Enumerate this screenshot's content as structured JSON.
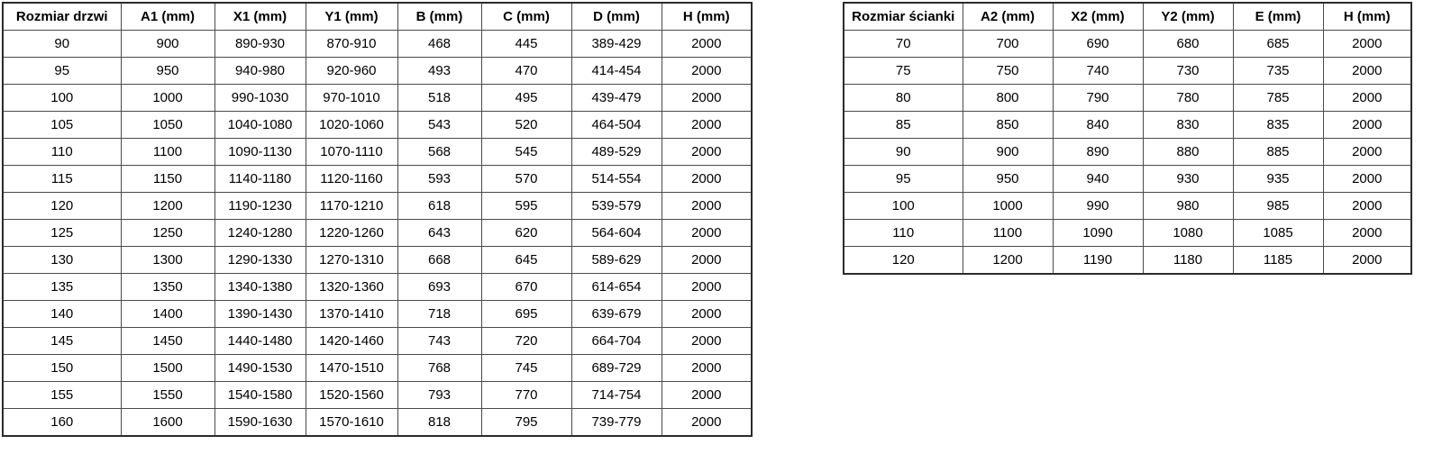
{
  "colors": {
    "background": "#ffffff",
    "text": "#000000",
    "outer_border": "#2b2b2b",
    "inner_border": "#4a4a4a"
  },
  "door_table": {
    "name": "door-dimensions-table",
    "headers": [
      "Rozmiar drzwi",
      "A1 (mm)",
      "X1 (mm)",
      "Y1 (mm)",
      "B (mm)",
      "C (mm)",
      "D (mm)",
      "H (mm)"
    ],
    "rows": [
      [
        "90",
        "900",
        "890-930",
        "870-910",
        "468",
        "445",
        "389-429",
        "2000"
      ],
      [
        "95",
        "950",
        "940-980",
        "920-960",
        "493",
        "470",
        "414-454",
        "2000"
      ],
      [
        "100",
        "1000",
        "990-1030",
        "970-1010",
        "518",
        "495",
        "439-479",
        "2000"
      ],
      [
        "105",
        "1050",
        "1040-1080",
        "1020-1060",
        "543",
        "520",
        "464-504",
        "2000"
      ],
      [
        "110",
        "1100",
        "1090-1130",
        "1070-1110",
        "568",
        "545",
        "489-529",
        "2000"
      ],
      [
        "115",
        "1150",
        "1140-1180",
        "1120-1160",
        "593",
        "570",
        "514-554",
        "2000"
      ],
      [
        "120",
        "1200",
        "1190-1230",
        "1170-1210",
        "618",
        "595",
        "539-579",
        "2000"
      ],
      [
        "125",
        "1250",
        "1240-1280",
        "1220-1260",
        "643",
        "620",
        "564-604",
        "2000"
      ],
      [
        "130",
        "1300",
        "1290-1330",
        "1270-1310",
        "668",
        "645",
        "589-629",
        "2000"
      ],
      [
        "135",
        "1350",
        "1340-1380",
        "1320-1360",
        "693",
        "670",
        "614-654",
        "2000"
      ],
      [
        "140",
        "1400",
        "1390-1430",
        "1370-1410",
        "718",
        "695",
        "639-679",
        "2000"
      ],
      [
        "145",
        "1450",
        "1440-1480",
        "1420-1460",
        "743",
        "720",
        "664-704",
        "2000"
      ],
      [
        "150",
        "1500",
        "1490-1530",
        "1470-1510",
        "768",
        "745",
        "689-729",
        "2000"
      ],
      [
        "155",
        "1550",
        "1540-1580",
        "1520-1560",
        "793",
        "770",
        "714-754",
        "2000"
      ],
      [
        "160",
        "1600",
        "1590-1630",
        "1570-1610",
        "818",
        "795",
        "739-779",
        "2000"
      ]
    ]
  },
  "wall_table": {
    "name": "wall-panel-dimensions-table",
    "headers": [
      "Rozmiar ścianki",
      "A2 (mm)",
      "X2 (mm)",
      "Y2 (mm)",
      "E (mm)",
      "H (mm)"
    ],
    "rows": [
      [
        "70",
        "700",
        "690",
        "680",
        "685",
        "2000"
      ],
      [
        "75",
        "750",
        "740",
        "730",
        "735",
        "2000"
      ],
      [
        "80",
        "800",
        "790",
        "780",
        "785",
        "2000"
      ],
      [
        "85",
        "850",
        "840",
        "830",
        "835",
        "2000"
      ],
      [
        "90",
        "900",
        "890",
        "880",
        "885",
        "2000"
      ],
      [
        "95",
        "950",
        "940",
        "930",
        "935",
        "2000"
      ],
      [
        "100",
        "1000",
        "990",
        "980",
        "985",
        "2000"
      ],
      [
        "110",
        "1100",
        "1090",
        "1080",
        "1085",
        "2000"
      ],
      [
        "120",
        "1200",
        "1190",
        "1180",
        "1185",
        "2000"
      ]
    ]
  }
}
